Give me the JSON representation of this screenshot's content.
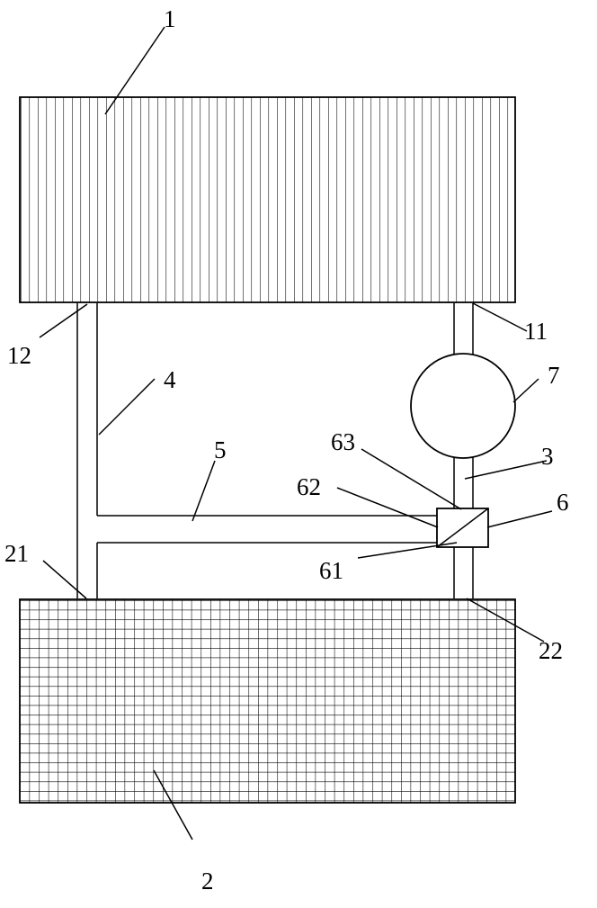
{
  "labels": {
    "l1": "1",
    "l2": "2",
    "l3": "3",
    "l4": "4",
    "l5": "5",
    "l6": "6",
    "l7": "7",
    "l11": "11",
    "l12": "12",
    "l21": "21",
    "l22": "22",
    "l61": "61",
    "l62": "62",
    "l63": "63"
  },
  "colors": {
    "line": "#000000",
    "background": "#ffffff"
  }
}
